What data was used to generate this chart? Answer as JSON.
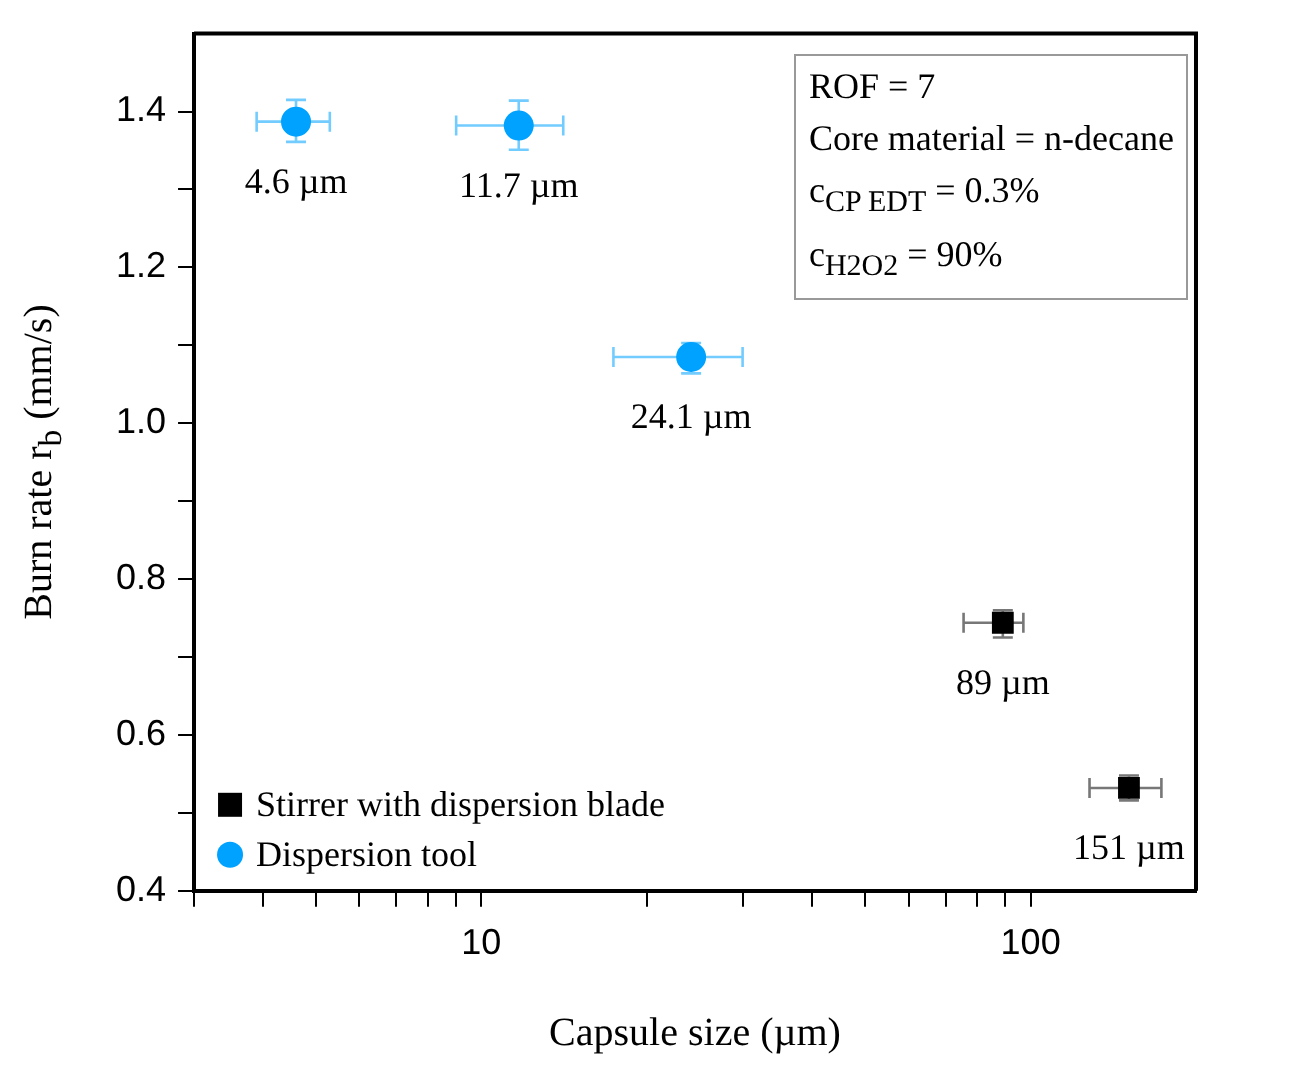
{
  "chart_data": {
    "type": "scatter",
    "xlabel": "Capsule size (µm)",
    "ylabel": "Burn rate r$_{b}$ (mm/s)",
    "log": "x",
    "grid": false,
    "legend": "bottom left",
    "xlim": [
      3,
      200
    ],
    "xticks": [
      {
        "value": 3,
        "label": null
      },
      {
        "value": 4,
        "label": null
      },
      {
        "value": 5,
        "label": null
      },
      {
        "value": 6,
        "label": null
      },
      {
        "value": 7,
        "label": null
      },
      {
        "value": 8,
        "label": null
      },
      {
        "value": 9,
        "label": null
      },
      10,
      {
        "value": 20,
        "label": null
      },
      {
        "value": 30,
        "label": null
      },
      {
        "value": 40,
        "label": null
      },
      {
        "value": 50,
        "label": null
      },
      {
        "value": 60,
        "label": null
      },
      {
        "value": 70,
        "label": null
      },
      {
        "value": 80,
        "label": null
      },
      {
        "value": 90,
        "label": null
      },
      100
    ],
    "ylim": [
      0.4,
      1.5
    ],
    "yticks": [
      {
        "value": 0.4,
        "label": "0.4"
      },
      {
        "value": 0.5,
        "label": null
      },
      {
        "value": 0.6,
        "label": "0.6"
      },
      {
        "value": 0.7,
        "label": null
      },
      {
        "value": 0.8,
        "label": "0.8"
      },
      {
        "value": 0.9,
        "label": null
      },
      {
        "value": 1,
        "label": "1.0"
      },
      {
        "value": 1.1,
        "label": null
      },
      {
        "value": 1.2,
        "label": "1.2"
      },
      {
        "value": 1.3,
        "label": null
      },
      {
        "value": 1.4,
        "label": "1.4"
      }
    ],
    "series": [
      {
        "name": "Stirrer with dispersion blade",
        "color": "#000000",
        "marker": "square",
        "x": [
          89,
          151
        ],
        "values": [
          0.744,
          0.532
        ],
        "errors": [
          [
            0.725,
            0.76
          ],
          [
            0.516,
            0.548
          ]
        ],
        "xerrors": [
          [
            75.5,
            97
          ],
          [
            128,
            173
          ]
        ]
      },
      {
        "name": "Dispersion tool",
        "color": "#00a2ff",
        "marker": "circle",
        "x": [
          4.6,
          11.7,
          24.1
        ],
        "values": [
          1.387,
          1.382,
          1.085
        ],
        "errors": [
          [
            1.361,
            1.415
          ],
          [
            1.351,
            1.414
          ],
          [
            1.064,
            1.103
          ]
        ],
        "xerrors": [
          [
            3.9,
            5.3
          ],
          [
            9.0,
            14.1
          ],
          [
            17.4,
            29.9
          ]
        ]
      }
    ],
    "annotations": [
      {
        "text": "4.6 µm",
        "x": 4.6,
        "y": 1.387
      },
      {
        "text": "11.7 µm",
        "x": 11.7,
        "y": 1.382
      },
      {
        "text": "24.1 µm",
        "x": 24.1,
        "y": 1.085
      },
      {
        "text": "89 µm",
        "x": 89,
        "y": 0.744
      },
      {
        "text": "151 µm",
        "x": 151,
        "y": 0.532
      },
      "ROF = 7",
      "Core material = n-decane",
      "c$_{CP EDT}$ = 0.3%",
      "c$_{H2O2}$ = 90%"
    ]
  }
}
